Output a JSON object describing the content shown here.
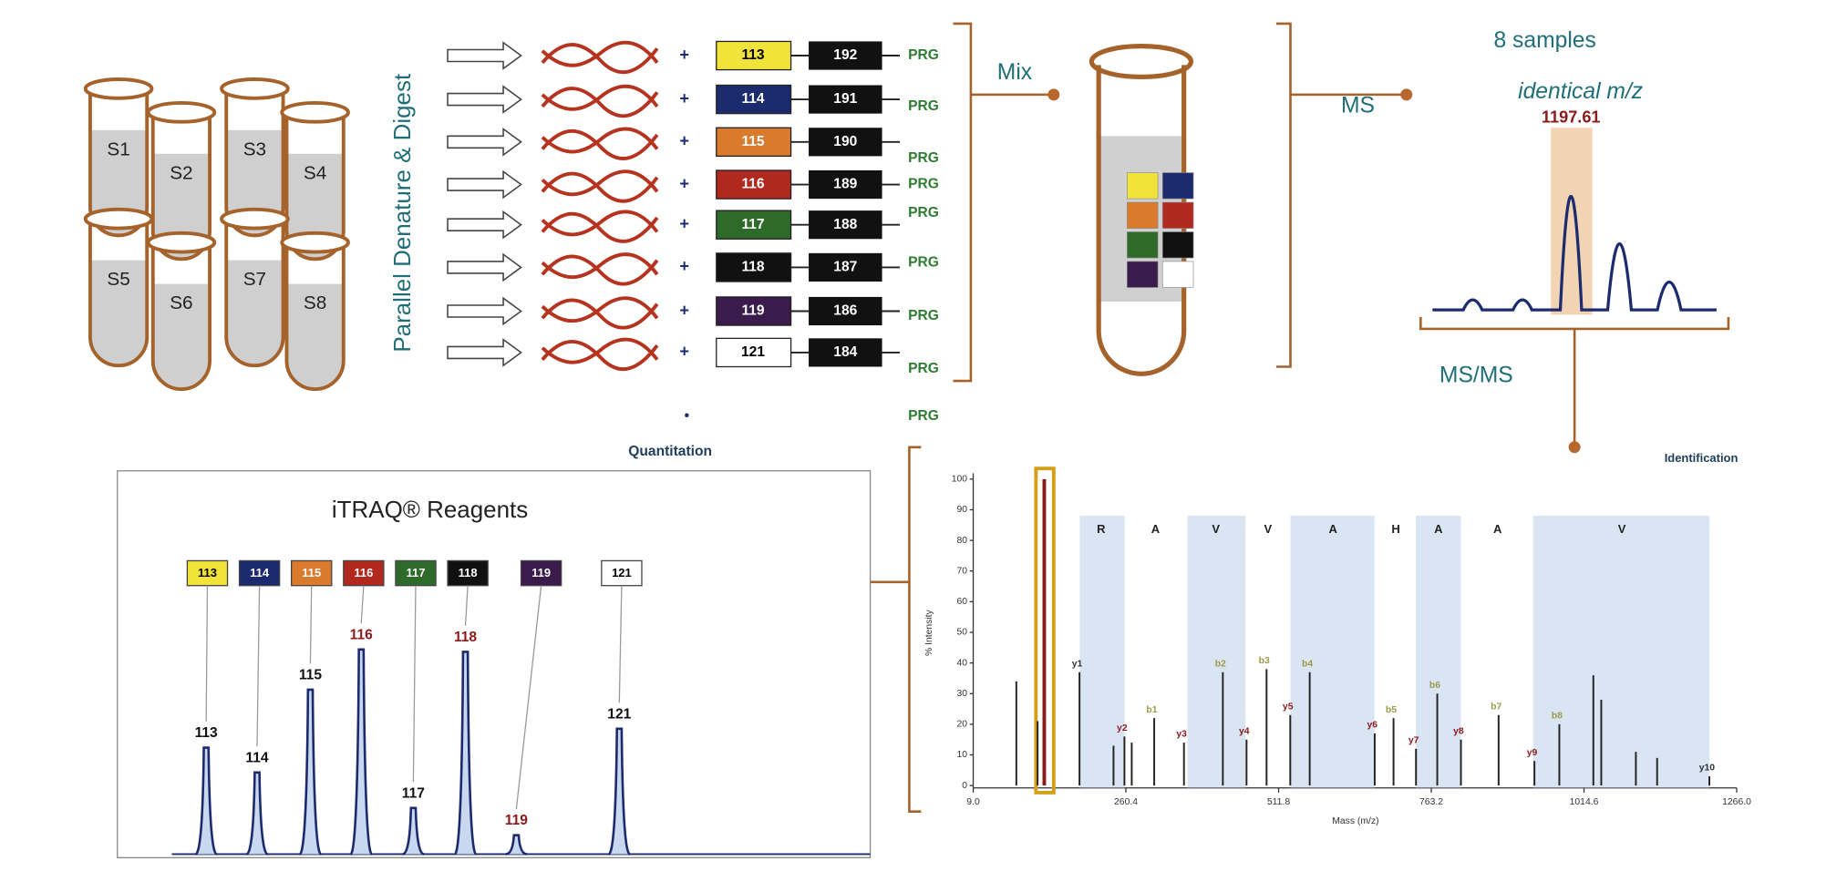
{
  "samples": [
    "S1",
    "S2",
    "S3",
    "S4",
    "S5",
    "S6",
    "S7",
    "S8"
  ],
  "process_label": "Parallel Denature & Digest",
  "tags": [
    {
      "reporter": "113",
      "balancer": "192",
      "color": "#f2e33a",
      "text_color": "#000000"
    },
    {
      "reporter": "114",
      "balancer": "191",
      "color": "#1c2a6e",
      "text_color": "#ffffff"
    },
    {
      "reporter": "115",
      "balancer": "190",
      "color": "#d97a2c",
      "text_color": "#ffffff"
    },
    {
      "reporter": "116",
      "balancer": "189",
      "color": "#b0281e",
      "text_color": "#ffffff"
    },
    {
      "reporter": "117",
      "balancer": "188",
      "color": "#2e6a2a",
      "text_color": "#ffffff"
    },
    {
      "reporter": "118",
      "balancer": "187",
      "color": "#111111",
      "text_color": "#ffffff"
    },
    {
      "reporter": "119",
      "balancer": "186",
      "color": "#3b1a4c",
      "text_color": "#ffffff"
    },
    {
      "reporter": "121",
      "balancer": "184",
      "color": "#ffffff",
      "text_color": "#000000"
    }
  ],
  "prg_labels": [
    "PRG",
    "PRG",
    "PRG",
    "PRG",
    "PRG",
    "PRG",
    "PRG",
    "PRG",
    "PRG"
  ],
  "mix": "Mix",
  "ms": "MS",
  "sample_count": "8 samples",
  "identical": "identical m/z",
  "precursor": "1197.61",
  "msms": "MS/MS",
  "quantitation": "Quantitation",
  "identification": "Identification",
  "reagents": {
    "title": "iTRAQ® Reagents",
    "legend": [
      "113",
      "114",
      "115",
      "116",
      "117",
      "118",
      "119",
      "121"
    ],
    "peaks": [
      {
        "label": "113",
        "intensity": 90,
        "label_color": "#111111"
      },
      {
        "label": "114",
        "intensity": 69,
        "label_color": "#111111"
      },
      {
        "label": "115",
        "intensity": 139,
        "label_color": "#111111"
      },
      {
        "label": "116",
        "intensity": 173,
        "label_color": "#8b1a1a"
      },
      {
        "label": "117",
        "intensity": 39,
        "label_color": "#111111"
      },
      {
        "label": "118",
        "intensity": 171,
        "label_color": "#8b1a1a"
      },
      {
        "label": "119",
        "intensity": 16,
        "label_color": "#8b1a1a"
      },
      {
        "label": "121",
        "intensity": 106,
        "label_color": "#111111"
      }
    ]
  },
  "identification_spectrum": {
    "ylabel": "% Intensity",
    "xlabel": "Mass (m/z)",
    "xlim": [
      9,
      1266
    ],
    "ylim": [
      0,
      100
    ],
    "xticks": [
      {
        "value": 9,
        "label": "9.0"
      },
      260.4,
      511.8,
      763.2,
      1014.6,
      {
        "value": 1266,
        "label": "1266.0"
      }
    ],
    "yticks": [
      0,
      10,
      20,
      30,
      40,
      50,
      60,
      70,
      80,
      90,
      100
    ],
    "sequence": [
      "R",
      "A",
      "V",
      "V",
      "A",
      "H",
      "A",
      "A",
      "V"
    ],
    "ions": [
      {
        "label": "y1",
        "mass": 184,
        "intensity": 37,
        "color": "#333333"
      },
      {
        "label": "y2",
        "mass": 258,
        "intensity": 16,
        "color": "#8b1a1a"
      },
      {
        "label": "b1",
        "mass": 307,
        "intensity": 22,
        "color": "#9a9a4a"
      },
      {
        "label": "y3",
        "mass": 356,
        "intensity": 14,
        "color": "#8b1a1a"
      },
      {
        "label": "b2",
        "mass": 420,
        "intensity": 37,
        "color": "#9a9a4a"
      },
      {
        "label": "y4",
        "mass": 459,
        "intensity": 15,
        "color": "#8b1a1a"
      },
      {
        "label": "b3",
        "mass": 492,
        "intensity": 38,
        "color": "#9a9a4a"
      },
      {
        "label": "y5",
        "mass": 531,
        "intensity": 23,
        "color": "#8b1a1a"
      },
      {
        "label": "b4",
        "mass": 563,
        "intensity": 37,
        "color": "#9a9a4a"
      },
      {
        "label": "y6",
        "mass": 670,
        "intensity": 17,
        "color": "#8b1a1a"
      },
      {
        "label": "b5",
        "mass": 701,
        "intensity": 22,
        "color": "#9a9a4a"
      },
      {
        "label": "y7",
        "mass": 738,
        "intensity": 12,
        "color": "#8b1a1a"
      },
      {
        "label": "b6",
        "mass": 773,
        "intensity": 30,
        "color": "#9a9a4a"
      },
      {
        "label": "y8",
        "mass": 812,
        "intensity": 15,
        "color": "#8b1a1a"
      },
      {
        "label": "b7",
        "mass": 874,
        "intensity": 23,
        "color": "#9a9a4a"
      },
      {
        "label": "y9",
        "mass": 933,
        "intensity": 8,
        "color": "#8b1a1a"
      },
      {
        "label": "b8",
        "mass": 974,
        "intensity": 20,
        "color": "#9a9a4a"
      },
      {
        "label": "y10",
        "mass": 1221,
        "intensity": 3,
        "color": "#333333"
      }
    ],
    "peaks": [
      {
        "mass": 126,
        "intensity": 100
      },
      {
        "mass": 80,
        "intensity": 34
      },
      {
        "mass": 115,
        "intensity": 21
      },
      {
        "mass": 240,
        "intensity": 13
      },
      {
        "mass": 270,
        "intensity": 14
      },
      {
        "mass": 1030,
        "intensity": 36
      },
      {
        "mass": 1043,
        "intensity": 28
      },
      {
        "mass": 1100,
        "intensity": 11
      },
      {
        "mass": 1135,
        "intensity": 9
      }
    ]
  }
}
